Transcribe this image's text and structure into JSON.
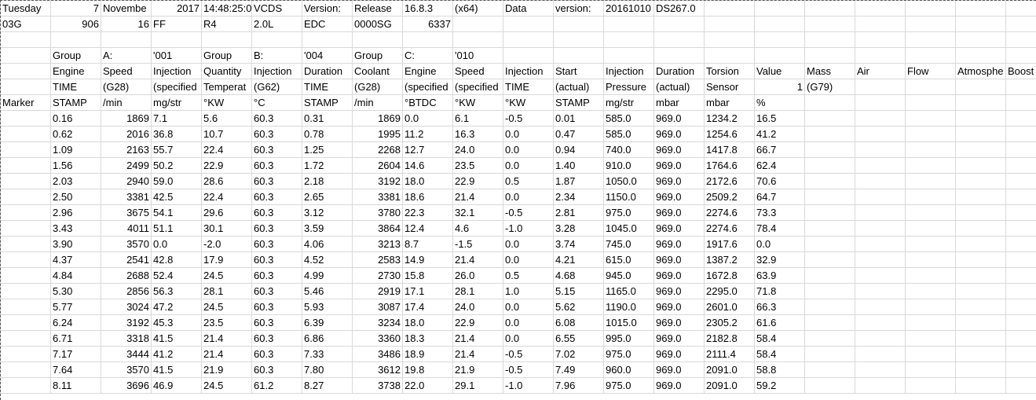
{
  "rows": [
    [
      {
        "v": "Tuesday"
      },
      {
        "v": "7",
        "a": "r"
      },
      {
        "v": "Novembe"
      },
      {
        "v": "2017",
        "a": "r"
      },
      {
        "v": "14:48:25:0"
      },
      {
        "v": "VCDS"
      },
      {
        "v": "Version:"
      },
      {
        "v": "Release"
      },
      {
        "v": "16.8.3"
      },
      {
        "v": "(x64)"
      },
      {
        "v": "Data"
      },
      {
        "v": "version:"
      },
      {
        "v": "20161010"
      },
      {
        "v": "DS267.0"
      },
      {
        "v": ""
      },
      {
        "v": ""
      },
      {
        "v": ""
      },
      {
        "v": ""
      },
      {
        "v": ""
      },
      {
        "v": ""
      }
    ],
    [
      {
        "v": "03G"
      },
      {
        "v": "906",
        "a": "r"
      },
      {
        "v": "16",
        "a": "r"
      },
      {
        "v": "FF"
      },
      {
        "v": "R4"
      },
      {
        "v": "2.0L"
      },
      {
        "v": "EDC"
      },
      {
        "v": "0000SG"
      },
      {
        "v": "6337",
        "a": "r"
      },
      {
        "v": ""
      },
      {
        "v": ""
      },
      {
        "v": ""
      },
      {
        "v": ""
      },
      {
        "v": ""
      },
      {
        "v": ""
      },
      {
        "v": ""
      },
      {
        "v": ""
      },
      {
        "v": ""
      },
      {
        "v": ""
      },
      {
        "v": ""
      }
    ],
    [
      {
        "v": ""
      },
      {
        "v": ""
      },
      {
        "v": ""
      },
      {
        "v": ""
      },
      {
        "v": ""
      },
      {
        "v": ""
      },
      {
        "v": ""
      },
      {
        "v": ""
      },
      {
        "v": ""
      },
      {
        "v": ""
      },
      {
        "v": ""
      },
      {
        "v": ""
      },
      {
        "v": ""
      },
      {
        "v": ""
      },
      {
        "v": ""
      },
      {
        "v": ""
      },
      {
        "v": ""
      },
      {
        "v": ""
      },
      {
        "v": ""
      },
      {
        "v": ""
      }
    ],
    [
      {
        "v": ""
      },
      {
        "v": "Group"
      },
      {
        "v": "A:"
      },
      {
        "v": "'001"
      },
      {
        "v": "Group"
      },
      {
        "v": "B:"
      },
      {
        "v": "'004"
      },
      {
        "v": "Group"
      },
      {
        "v": "C:"
      },
      {
        "v": "'010"
      },
      {
        "v": ""
      },
      {
        "v": ""
      },
      {
        "v": ""
      },
      {
        "v": ""
      },
      {
        "v": ""
      },
      {
        "v": ""
      },
      {
        "v": ""
      },
      {
        "v": ""
      },
      {
        "v": ""
      },
      {
        "v": ""
      }
    ],
    [
      {
        "v": ""
      },
      {
        "v": "Engine"
      },
      {
        "v": "Speed"
      },
      {
        "v": "Injection"
      },
      {
        "v": "Quantity"
      },
      {
        "v": "Injection"
      },
      {
        "v": "Duration"
      },
      {
        "v": "Coolant"
      },
      {
        "v": "Engine"
      },
      {
        "v": "Speed"
      },
      {
        "v": "Injection"
      },
      {
        "v": "Start"
      },
      {
        "v": "Injection"
      },
      {
        "v": "Duration"
      },
      {
        "v": "Torsion"
      },
      {
        "v": "Value"
      },
      {
        "v": "Mass"
      },
      {
        "v": "Air"
      },
      {
        "v": "Flow"
      },
      {
        "v": "Atmosphe"
      },
      {
        "v": "Boost"
      }
    ],
    [
      {
        "v": ""
      },
      {
        "v": "TIME"
      },
      {
        "v": "(G28)"
      },
      {
        "v": "(specified"
      },
      {
        "v": "Temperat"
      },
      {
        "v": "(G62)"
      },
      {
        "v": "TIME"
      },
      {
        "v": "(G28)"
      },
      {
        "v": "(specified"
      },
      {
        "v": "(specified"
      },
      {
        "v": "TIME"
      },
      {
        "v": "(actual)"
      },
      {
        "v": "Pressure"
      },
      {
        "v": "(actual)"
      },
      {
        "v": "Sensor"
      },
      {
        "v": "1",
        "a": "r"
      },
      {
        "v": "(G79)"
      },
      {
        "v": ""
      },
      {
        "v": ""
      },
      {
        "v": ""
      },
      {
        "v": ""
      }
    ],
    [
      {
        "v": "Marker"
      },
      {
        "v": "STAMP"
      },
      {
        "v": "/min"
      },
      {
        "v": "mg/str"
      },
      {
        "v": "°KW"
      },
      {
        "v": "°C"
      },
      {
        "v": "STAMP"
      },
      {
        "v": "/min"
      },
      {
        "v": "°BTDC"
      },
      {
        "v": "°KW"
      },
      {
        "v": "°KW"
      },
      {
        "v": "STAMP"
      },
      {
        "v": "mg/str"
      },
      {
        "v": "mbar"
      },
      {
        "v": "mbar"
      },
      {
        "v": "%"
      },
      {
        "v": ""
      },
      {
        "v": ""
      },
      {
        "v": ""
      },
      {
        "v": ""
      },
      {
        "v": ""
      }
    ],
    [
      {
        "v": ""
      },
      {
        "v": "0.16"
      },
      {
        "v": "1869",
        "a": "r"
      },
      {
        "v": "7.1"
      },
      {
        "v": "5.6"
      },
      {
        "v": "60.3"
      },
      {
        "v": "0.31"
      },
      {
        "v": "1869",
        "a": "r"
      },
      {
        "v": "0.0"
      },
      {
        "v": "6.1"
      },
      {
        "v": "-0.5"
      },
      {
        "v": "0.01"
      },
      {
        "v": "585.0"
      },
      {
        "v": "969.0"
      },
      {
        "v": "1234.2"
      },
      {
        "v": "16.5"
      },
      {
        "v": ""
      },
      {
        "v": ""
      },
      {
        "v": ""
      },
      {
        "v": ""
      },
      {
        "v": ""
      }
    ],
    [
      {
        "v": ""
      },
      {
        "v": "0.62"
      },
      {
        "v": "2016",
        "a": "r"
      },
      {
        "v": "36.8"
      },
      {
        "v": "10.7"
      },
      {
        "v": "60.3"
      },
      {
        "v": "0.78"
      },
      {
        "v": "1995",
        "a": "r"
      },
      {
        "v": "11.2"
      },
      {
        "v": "16.3"
      },
      {
        "v": "0.0"
      },
      {
        "v": "0.47"
      },
      {
        "v": "585.0"
      },
      {
        "v": "969.0"
      },
      {
        "v": "1254.6"
      },
      {
        "v": "41.2"
      },
      {
        "v": ""
      },
      {
        "v": ""
      },
      {
        "v": ""
      },
      {
        "v": ""
      },
      {
        "v": ""
      }
    ],
    [
      {
        "v": ""
      },
      {
        "v": "1.09"
      },
      {
        "v": "2163",
        "a": "r"
      },
      {
        "v": "55.7"
      },
      {
        "v": "22.4"
      },
      {
        "v": "60.3"
      },
      {
        "v": "1.25"
      },
      {
        "v": "2268",
        "a": "r"
      },
      {
        "v": "12.7"
      },
      {
        "v": "24.0"
      },
      {
        "v": "0.0"
      },
      {
        "v": "0.94"
      },
      {
        "v": "740.0"
      },
      {
        "v": "969.0"
      },
      {
        "v": "1417.8"
      },
      {
        "v": "66.7"
      },
      {
        "v": ""
      },
      {
        "v": ""
      },
      {
        "v": ""
      },
      {
        "v": ""
      },
      {
        "v": ""
      }
    ],
    [
      {
        "v": ""
      },
      {
        "v": "1.56"
      },
      {
        "v": "2499",
        "a": "r"
      },
      {
        "v": "50.2"
      },
      {
        "v": "22.9"
      },
      {
        "v": "60.3"
      },
      {
        "v": "1.72"
      },
      {
        "v": "2604",
        "a": "r"
      },
      {
        "v": "14.6"
      },
      {
        "v": "23.5"
      },
      {
        "v": "0.0"
      },
      {
        "v": "1.40"
      },
      {
        "v": "910.0"
      },
      {
        "v": "969.0"
      },
      {
        "v": "1764.6"
      },
      {
        "v": "62.4"
      },
      {
        "v": ""
      },
      {
        "v": ""
      },
      {
        "v": ""
      },
      {
        "v": ""
      },
      {
        "v": ""
      }
    ],
    [
      {
        "v": ""
      },
      {
        "v": "2.03"
      },
      {
        "v": "2940",
        "a": "r"
      },
      {
        "v": "59.0"
      },
      {
        "v": "28.6"
      },
      {
        "v": "60.3"
      },
      {
        "v": "2.18"
      },
      {
        "v": "3192",
        "a": "r"
      },
      {
        "v": "18.0"
      },
      {
        "v": "22.9"
      },
      {
        "v": "0.5"
      },
      {
        "v": "1.87"
      },
      {
        "v": "1050.0"
      },
      {
        "v": "969.0"
      },
      {
        "v": "2172.6"
      },
      {
        "v": "70.6"
      },
      {
        "v": ""
      },
      {
        "v": ""
      },
      {
        "v": ""
      },
      {
        "v": ""
      },
      {
        "v": ""
      }
    ],
    [
      {
        "v": ""
      },
      {
        "v": "2.50"
      },
      {
        "v": "3381",
        "a": "r"
      },
      {
        "v": "42.5"
      },
      {
        "v": "22.4"
      },
      {
        "v": "60.3"
      },
      {
        "v": "2.65"
      },
      {
        "v": "3381",
        "a": "r"
      },
      {
        "v": "18.6"
      },
      {
        "v": "21.4"
      },
      {
        "v": "0.0"
      },
      {
        "v": "2.34"
      },
      {
        "v": "1150.0"
      },
      {
        "v": "969.0"
      },
      {
        "v": "2509.2"
      },
      {
        "v": "64.7"
      },
      {
        "v": ""
      },
      {
        "v": ""
      },
      {
        "v": ""
      },
      {
        "v": ""
      },
      {
        "v": ""
      }
    ],
    [
      {
        "v": ""
      },
      {
        "v": "2.96"
      },
      {
        "v": "3675",
        "a": "r"
      },
      {
        "v": "54.1"
      },
      {
        "v": "29.6"
      },
      {
        "v": "60.3"
      },
      {
        "v": "3.12"
      },
      {
        "v": "3780",
        "a": "r"
      },
      {
        "v": "22.3"
      },
      {
        "v": "32.1"
      },
      {
        "v": "-0.5"
      },
      {
        "v": "2.81"
      },
      {
        "v": "975.0"
      },
      {
        "v": "969.0"
      },
      {
        "v": "2274.6"
      },
      {
        "v": "73.3"
      },
      {
        "v": ""
      },
      {
        "v": ""
      },
      {
        "v": ""
      },
      {
        "v": ""
      },
      {
        "v": ""
      }
    ],
    [
      {
        "v": ""
      },
      {
        "v": "3.43"
      },
      {
        "v": "4011",
        "a": "r"
      },
      {
        "v": "51.1"
      },
      {
        "v": "30.1"
      },
      {
        "v": "60.3"
      },
      {
        "v": "3.59"
      },
      {
        "v": "3864",
        "a": "r"
      },
      {
        "v": "12.4"
      },
      {
        "v": "4.6"
      },
      {
        "v": "-1.0"
      },
      {
        "v": "3.28"
      },
      {
        "v": "1045.0"
      },
      {
        "v": "969.0"
      },
      {
        "v": "2274.6"
      },
      {
        "v": "78.4"
      },
      {
        "v": ""
      },
      {
        "v": ""
      },
      {
        "v": ""
      },
      {
        "v": ""
      },
      {
        "v": ""
      }
    ],
    [
      {
        "v": ""
      },
      {
        "v": "3.90"
      },
      {
        "v": "3570",
        "a": "r"
      },
      {
        "v": "0.0"
      },
      {
        "v": "-2.0"
      },
      {
        "v": "60.3"
      },
      {
        "v": "4.06"
      },
      {
        "v": "3213",
        "a": "r"
      },
      {
        "v": "8.7"
      },
      {
        "v": "-1.5"
      },
      {
        "v": "0.0"
      },
      {
        "v": "3.74"
      },
      {
        "v": "745.0"
      },
      {
        "v": "969.0"
      },
      {
        "v": "1917.6"
      },
      {
        "v": "0.0"
      },
      {
        "v": ""
      },
      {
        "v": ""
      },
      {
        "v": ""
      },
      {
        "v": ""
      },
      {
        "v": ""
      }
    ],
    [
      {
        "v": ""
      },
      {
        "v": "4.37"
      },
      {
        "v": "2541",
        "a": "r"
      },
      {
        "v": "42.8"
      },
      {
        "v": "17.9"
      },
      {
        "v": "60.3"
      },
      {
        "v": "4.52"
      },
      {
        "v": "2583",
        "a": "r"
      },
      {
        "v": "14.9"
      },
      {
        "v": "21.4"
      },
      {
        "v": "0.0"
      },
      {
        "v": "4.21"
      },
      {
        "v": "615.0"
      },
      {
        "v": "969.0"
      },
      {
        "v": "1387.2"
      },
      {
        "v": "32.9"
      },
      {
        "v": ""
      },
      {
        "v": ""
      },
      {
        "v": ""
      },
      {
        "v": ""
      },
      {
        "v": ""
      }
    ],
    [
      {
        "v": ""
      },
      {
        "v": "4.84"
      },
      {
        "v": "2688",
        "a": "r"
      },
      {
        "v": "52.4"
      },
      {
        "v": "24.5"
      },
      {
        "v": "60.3"
      },
      {
        "v": "4.99"
      },
      {
        "v": "2730",
        "a": "r"
      },
      {
        "v": "15.8"
      },
      {
        "v": "26.0"
      },
      {
        "v": "0.5"
      },
      {
        "v": "4.68"
      },
      {
        "v": "945.0"
      },
      {
        "v": "969.0"
      },
      {
        "v": "1672.8"
      },
      {
        "v": "63.9"
      },
      {
        "v": ""
      },
      {
        "v": ""
      },
      {
        "v": ""
      },
      {
        "v": ""
      },
      {
        "v": ""
      }
    ],
    [
      {
        "v": ""
      },
      {
        "v": "5.30"
      },
      {
        "v": "2856",
        "a": "r"
      },
      {
        "v": "56.3"
      },
      {
        "v": "28.1"
      },
      {
        "v": "60.3"
      },
      {
        "v": "5.46"
      },
      {
        "v": "2919",
        "a": "r"
      },
      {
        "v": "17.1"
      },
      {
        "v": "28.1"
      },
      {
        "v": "1.0"
      },
      {
        "v": "5.15"
      },
      {
        "v": "1165.0"
      },
      {
        "v": "969.0"
      },
      {
        "v": "2295.0"
      },
      {
        "v": "71.8"
      },
      {
        "v": ""
      },
      {
        "v": ""
      },
      {
        "v": ""
      },
      {
        "v": ""
      },
      {
        "v": ""
      }
    ],
    [
      {
        "v": ""
      },
      {
        "v": "5.77"
      },
      {
        "v": "3024",
        "a": "r"
      },
      {
        "v": "47.2"
      },
      {
        "v": "24.5"
      },
      {
        "v": "60.3"
      },
      {
        "v": "5.93"
      },
      {
        "v": "3087",
        "a": "r"
      },
      {
        "v": "17.4"
      },
      {
        "v": "24.0"
      },
      {
        "v": "0.0"
      },
      {
        "v": "5.62"
      },
      {
        "v": "1190.0"
      },
      {
        "v": "969.0"
      },
      {
        "v": "2601.0"
      },
      {
        "v": "66.3"
      },
      {
        "v": ""
      },
      {
        "v": ""
      },
      {
        "v": ""
      },
      {
        "v": ""
      },
      {
        "v": ""
      }
    ],
    [
      {
        "v": ""
      },
      {
        "v": "6.24"
      },
      {
        "v": "3192",
        "a": "r"
      },
      {
        "v": "45.3"
      },
      {
        "v": "23.5"
      },
      {
        "v": "60.3"
      },
      {
        "v": "6.39"
      },
      {
        "v": "3234",
        "a": "r"
      },
      {
        "v": "18.0"
      },
      {
        "v": "22.9"
      },
      {
        "v": "0.0"
      },
      {
        "v": "6.08"
      },
      {
        "v": "1015.0"
      },
      {
        "v": "969.0"
      },
      {
        "v": "2305.2"
      },
      {
        "v": "61.6"
      },
      {
        "v": ""
      },
      {
        "v": ""
      },
      {
        "v": ""
      },
      {
        "v": ""
      },
      {
        "v": ""
      }
    ],
    [
      {
        "v": ""
      },
      {
        "v": "6.71"
      },
      {
        "v": "3318",
        "a": "r"
      },
      {
        "v": "41.5"
      },
      {
        "v": "21.4"
      },
      {
        "v": "60.3"
      },
      {
        "v": "6.86"
      },
      {
        "v": "3360",
        "a": "r"
      },
      {
        "v": "18.3"
      },
      {
        "v": "21.4"
      },
      {
        "v": "0.0"
      },
      {
        "v": "6.55"
      },
      {
        "v": "995.0"
      },
      {
        "v": "969.0"
      },
      {
        "v": "2182.8"
      },
      {
        "v": "58.4"
      },
      {
        "v": ""
      },
      {
        "v": ""
      },
      {
        "v": ""
      },
      {
        "v": ""
      },
      {
        "v": ""
      }
    ],
    [
      {
        "v": ""
      },
      {
        "v": "7.17"
      },
      {
        "v": "3444",
        "a": "r"
      },
      {
        "v": "41.2"
      },
      {
        "v": "21.4"
      },
      {
        "v": "60.3"
      },
      {
        "v": "7.33"
      },
      {
        "v": "3486",
        "a": "r"
      },
      {
        "v": "18.9"
      },
      {
        "v": "21.4"
      },
      {
        "v": "-0.5"
      },
      {
        "v": "7.02"
      },
      {
        "v": "975.0"
      },
      {
        "v": "969.0"
      },
      {
        "v": "2111.4"
      },
      {
        "v": "58.4"
      },
      {
        "v": ""
      },
      {
        "v": ""
      },
      {
        "v": ""
      },
      {
        "v": ""
      },
      {
        "v": ""
      }
    ],
    [
      {
        "v": ""
      },
      {
        "v": "7.64"
      },
      {
        "v": "3570",
        "a": "r"
      },
      {
        "v": "41.5"
      },
      {
        "v": "21.9"
      },
      {
        "v": "60.3"
      },
      {
        "v": "7.80"
      },
      {
        "v": "3612",
        "a": "r"
      },
      {
        "v": "19.8"
      },
      {
        "v": "21.9"
      },
      {
        "v": "-0.5"
      },
      {
        "v": "7.49"
      },
      {
        "v": "960.0"
      },
      {
        "v": "969.0"
      },
      {
        "v": "2091.0"
      },
      {
        "v": "58.8"
      },
      {
        "v": ""
      },
      {
        "v": ""
      },
      {
        "v": ""
      },
      {
        "v": ""
      },
      {
        "v": ""
      }
    ],
    [
      {
        "v": ""
      },
      {
        "v": "8.11"
      },
      {
        "v": "3696",
        "a": "r"
      },
      {
        "v": "46.9"
      },
      {
        "v": "24.5"
      },
      {
        "v": "61.2"
      },
      {
        "v": "8.27"
      },
      {
        "v": "3738",
        "a": "r"
      },
      {
        "v": "22.0"
      },
      {
        "v": "29.1"
      },
      {
        "v": "-1.0"
      },
      {
        "v": "7.96"
      },
      {
        "v": "975.0"
      },
      {
        "v": "969.0"
      },
      {
        "v": "2091.0"
      },
      {
        "v": "59.2"
      },
      {
        "v": ""
      },
      {
        "v": ""
      },
      {
        "v": ""
      },
      {
        "v": ""
      },
      {
        "v": ""
      }
    ]
  ]
}
